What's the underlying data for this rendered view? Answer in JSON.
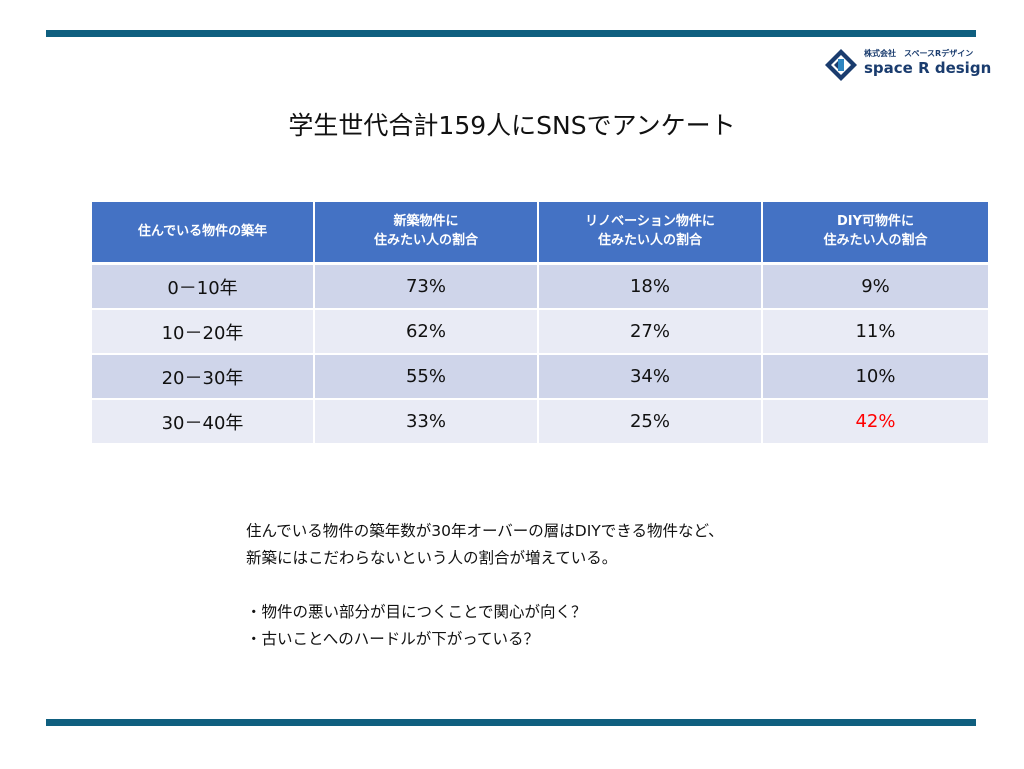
{
  "colors": {
    "rule": "#0f5f7f",
    "header_bg": "#4472c4",
    "row_dark": "#cfd5ea",
    "row_light": "#e9ebf5",
    "highlight": "#ff0000",
    "logo": "#1a3c6e"
  },
  "logo": {
    "icon": "space-r-design-logo-icon",
    "company": "株式会社　スペースRデザイン",
    "brand": "space R design"
  },
  "title": "学生世代合計159人にSNSでアンケート",
  "table": {
    "headers": [
      {
        "line1": "住んでいる物件の築年",
        "line2": ""
      },
      {
        "line1": "新築物件に",
        "line2": "住みたい人の割合"
      },
      {
        "line1": "リノベーション物件に",
        "line2": "住みたい人の割合"
      },
      {
        "line1": "DIY可物件に",
        "line2": "住みたい人の割合"
      }
    ],
    "rows": [
      {
        "age": "0－10年",
        "new_build": "73%",
        "renovation": "18%",
        "diy": "9%"
      },
      {
        "age": "10－20年",
        "new_build": "62%",
        "renovation": "27%",
        "diy": "11%"
      },
      {
        "age": "20－30年",
        "new_build": "55%",
        "renovation": "34%",
        "diy": "10%"
      },
      {
        "age": "30－40年",
        "new_build": "33%",
        "renovation": "25%",
        "diy": "42%"
      }
    ]
  },
  "notes": {
    "line1": "住んでいる物件の築年数が30年オーバーの層はDIYできる物件など、",
    "line2": "新築にはこだわらないという人の割合が増えている。",
    "bullet1": "・物件の悪い部分が目につくことで関心が向く？",
    "bullet2": "・古いことへのハードルが下がっている？"
  }
}
